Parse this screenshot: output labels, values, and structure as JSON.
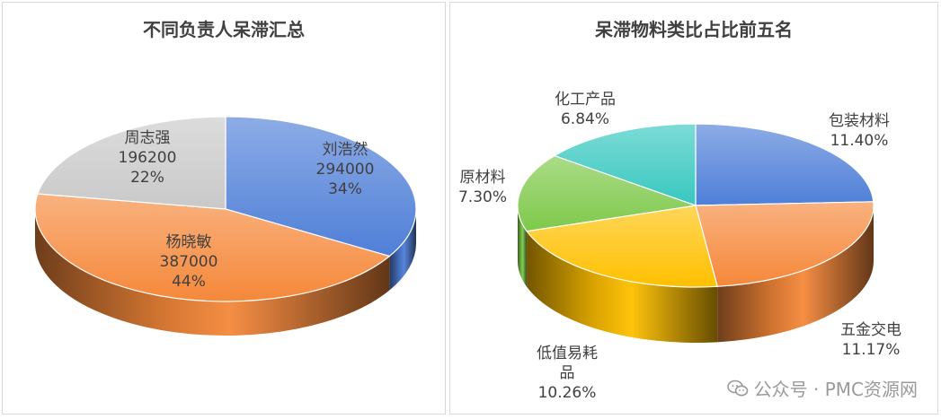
{
  "chart_data": [
    {
      "type": "pie",
      "title": "不同负责人呆滞汇总",
      "slices": [
        {
          "name": "刘浩然",
          "value": 294000,
          "percent": "34%",
          "color": "#4f7fd8"
        },
        {
          "name": "杨晓敏",
          "value": 387000,
          "percent": "44%",
          "color": "#f5883a"
        },
        {
          "name": "周志强",
          "value": 196200,
          "percent": "22%",
          "color": "#c9c9c9"
        }
      ]
    },
    {
      "type": "pie",
      "title": "呆滞物料类比占比前五名",
      "slices": [
        {
          "name": "包装材料",
          "percent": "11.40%",
          "value": 11.4,
          "color": "#4f7fd8"
        },
        {
          "name": "五金交电",
          "percent": "11.17%",
          "value": 11.17,
          "color": "#f5883a"
        },
        {
          "name": "低值易耗品",
          "label_lines": [
            "低值易耗",
            "品"
          ],
          "percent": "10.26%",
          "value": 10.26,
          "color": "#ffc000"
        },
        {
          "name": "原材料",
          "percent": "7.30%",
          "value": 7.3,
          "color": "#7ec94a"
        },
        {
          "name": "化工产品",
          "percent": "6.84%",
          "value": 6.84,
          "color": "#37c8c0"
        }
      ]
    }
  ],
  "watermark": {
    "text": "公众号 · PMC资源网",
    "icon": "wechat-icon"
  }
}
